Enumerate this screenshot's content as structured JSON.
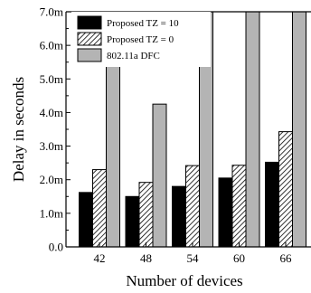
{
  "chart_data": {
    "type": "bar",
    "xlabel": "Number of devices",
    "ylabel": "Delay in seconds",
    "categories": [
      "42",
      "48",
      "54",
      "60",
      "66"
    ],
    "series": [
      {
        "name": "Proposed TZ  = 10",
        "values": [
          1.62,
          1.5,
          1.8,
          2.05,
          2.52
        ],
        "pattern": "solid-black"
      },
      {
        "name": "Proposed TZ = 0",
        "values": [
          2.3,
          1.92,
          2.42,
          2.43,
          3.43
        ],
        "pattern": "hatched"
      },
      {
        "name": "802.11a DFC",
        "values": [
          7.0,
          4.25,
          7.0,
          7.0,
          7.0
        ],
        "pattern": "solid-gray"
      }
    ],
    "ylim": [
      0,
      7.0
    ],
    "yticks": [
      0,
      1,
      2,
      3,
      4,
      5,
      6,
      7
    ],
    "ytick_labels": [
      "0.0",
      "1.0m",
      "2.0m",
      "3.0m",
      "4.0m",
      "5.0m",
      "6.0m",
      "7.0m"
    ],
    "legend_position": "top-left",
    "grid": false,
    "colors": {
      "series1": "#000000",
      "series2": "#ffffff",
      "series3": "#b4b4b4"
    }
  }
}
